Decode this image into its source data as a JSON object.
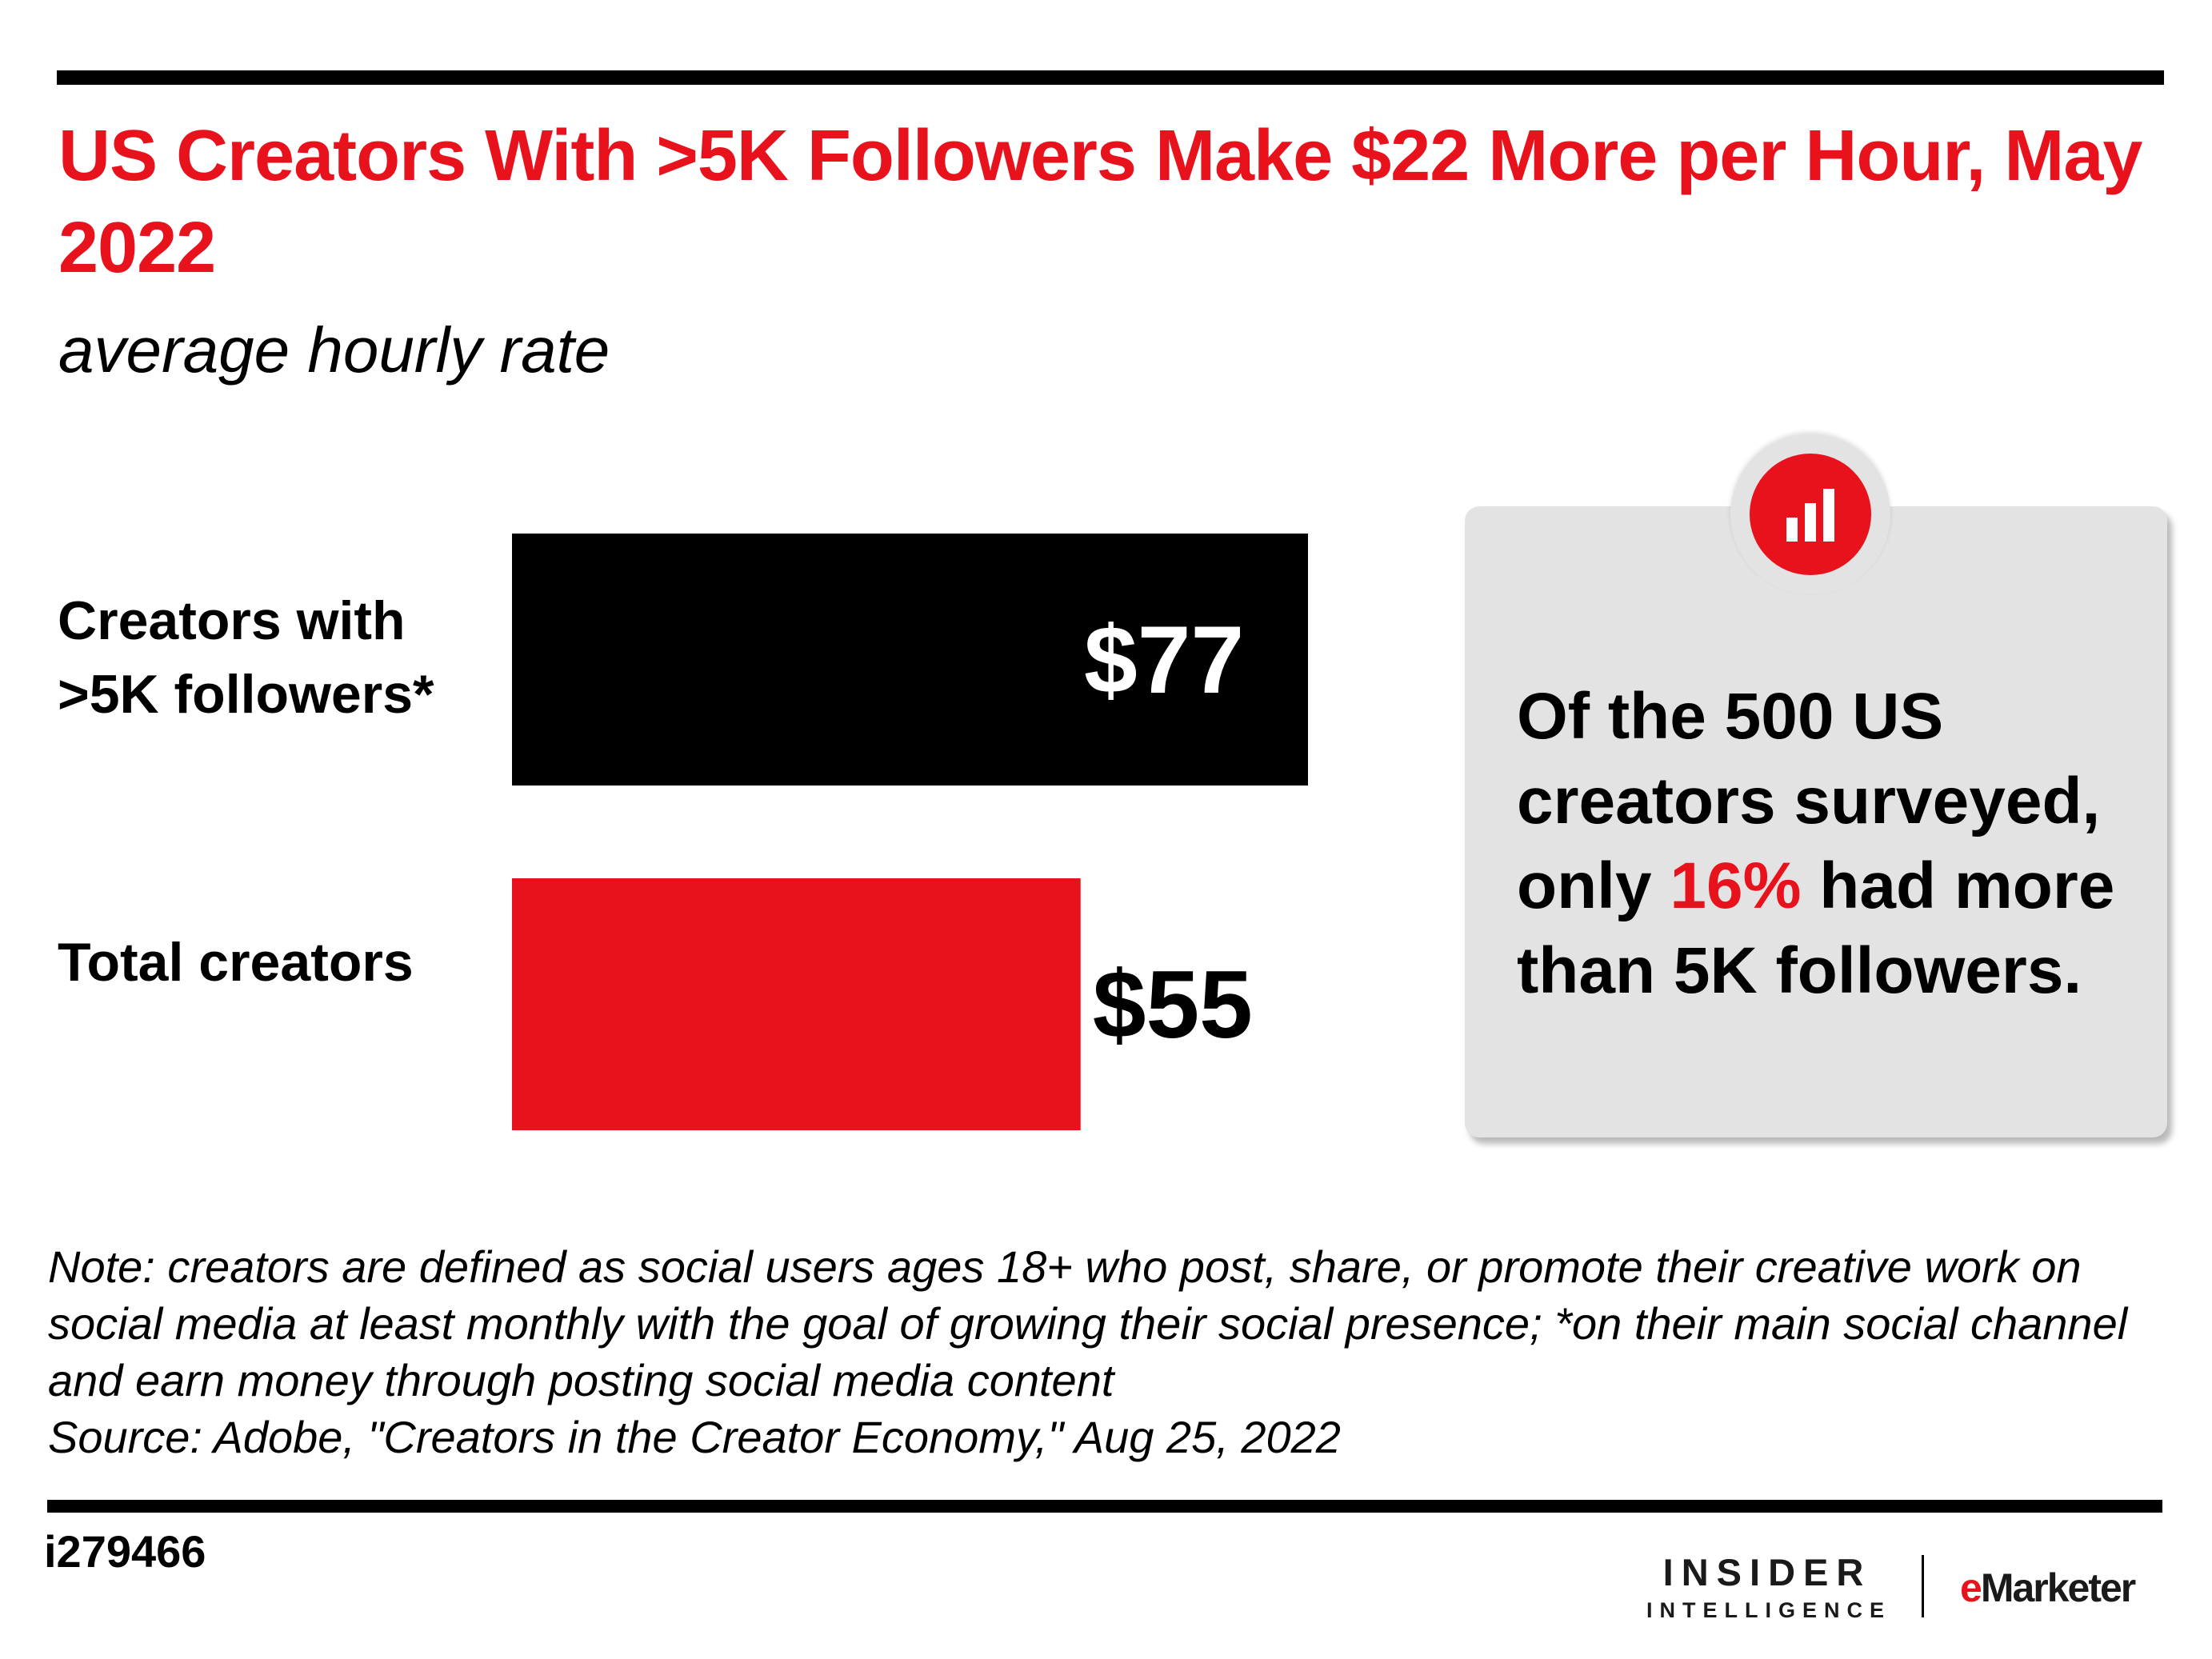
{
  "title": "US Creators With >5K Followers Make $22 More per Hour, May 2022",
  "subtitle": "average hourly rate",
  "chart_data": {
    "type": "bar",
    "orientation": "horizontal",
    "title": "US Creators With >5K Followers Make $22 More per Hour, May 2022",
    "subtitle": "average hourly rate",
    "categories": [
      "Creators with >5K followers*",
      "Total creators"
    ],
    "values": [
      77,
      55
    ],
    "value_labels": [
      "$77",
      "$55"
    ],
    "colors": [
      "#000000",
      "#e8121d"
    ],
    "xlim": [
      0,
      77
    ],
    "grid": false,
    "legend": "none"
  },
  "callout": {
    "text_before": "Of the 500 US creators surveyed, only ",
    "highlight": "16%",
    "text_after": " had more than 5K followers.",
    "icon": "bar-chart-icon",
    "accent_color": "#e8121d"
  },
  "note": {
    "lines": [
      "Note: creators are defined as social users ages 18+ who post, share, or promote their creative work on social media at least monthly with the goal of growing their social presence; *on their main social channel and earn money through posting social media content",
      "Source: Adobe, \"Creators in the Creator Economy,\" Aug 25, 2022"
    ]
  },
  "chart_id": "i279466",
  "brand": {
    "insider_top": "INSIDER",
    "insider_bottom": "INTELLIGENCE",
    "emarketer_e": "e",
    "emarketer_rest": "Marketer"
  }
}
